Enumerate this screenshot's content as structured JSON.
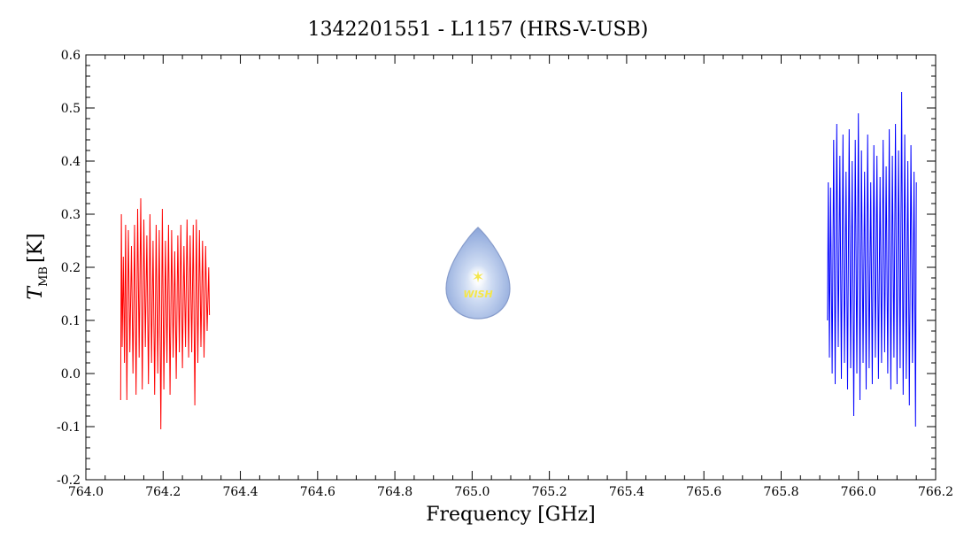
{
  "chart_data": {
    "type": "line",
    "title": "1342201551 - L1157 (HRS-V-USB)",
    "xlabel": "Frequency [GHz]",
    "ylabel_main": "T",
    "ylabel_sub": "MB",
    "ylabel_unit": "[K]",
    "xlim": [
      764.0,
      766.2
    ],
    "ylim": [
      -0.2,
      0.6
    ],
    "x_ticks": [
      "764.0",
      "764.2",
      "764.4",
      "764.6",
      "764.8",
      "765.0",
      "765.2",
      "765.4",
      "765.6",
      "765.8",
      "766.0",
      "766.2"
    ],
    "y_ticks": [
      "-0.2",
      "-0.1",
      "0.0",
      "0.1",
      "0.2",
      "0.3",
      "0.4",
      "0.5",
      "0.6"
    ],
    "grid": false,
    "series": [
      {
        "color": "#ff0000",
        "x_range": [
          764.09,
          764.32
        ],
        "mean": 0.13,
        "min": -0.105,
        "max": 0.33,
        "points": [
          [
            764.09,
            -0.05
          ],
          [
            764.092,
            0.3
          ],
          [
            764.094,
            0.05
          ],
          [
            764.097,
            0.22
          ],
          [
            764.1,
            0.02
          ],
          [
            764.103,
            0.28
          ],
          [
            764.106,
            -0.05
          ],
          [
            764.11,
            0.27
          ],
          [
            764.114,
            0.04
          ],
          [
            764.118,
            0.24
          ],
          [
            764.122,
            0.0
          ],
          [
            764.126,
            0.28
          ],
          [
            764.13,
            -0.04
          ],
          [
            764.134,
            0.31
          ],
          [
            764.138,
            0.03
          ],
          [
            764.142,
            0.33
          ],
          [
            764.146,
            -0.03
          ],
          [
            764.15,
            0.29
          ],
          [
            764.154,
            0.05
          ],
          [
            764.158,
            0.26
          ],
          [
            764.162,
            -0.02
          ],
          [
            764.166,
            0.3
          ],
          [
            764.17,
            0.02
          ],
          [
            764.174,
            0.25
          ],
          [
            764.178,
            -0.04
          ],
          [
            764.182,
            0.28
          ],
          [
            764.186,
            0.0
          ],
          [
            764.19,
            0.27
          ],
          [
            764.194,
            -0.105
          ],
          [
            764.198,
            0.31
          ],
          [
            764.202,
            -0.03
          ],
          [
            764.206,
            0.25
          ],
          [
            764.21,
            0.02
          ],
          [
            764.214,
            0.28
          ],
          [
            764.218,
            -0.04
          ],
          [
            764.222,
            0.27
          ],
          [
            764.226,
            0.03
          ],
          [
            764.23,
            0.23
          ],
          [
            764.234,
            -0.01
          ],
          [
            764.238,
            0.26
          ],
          [
            764.242,
            0.04
          ],
          [
            764.246,
            0.28
          ],
          [
            764.25,
            0.01
          ],
          [
            764.254,
            0.24
          ],
          [
            764.258,
            0.05
          ],
          [
            764.262,
            0.29
          ],
          [
            764.266,
            0.03
          ],
          [
            764.27,
            0.26
          ],
          [
            764.274,
            0.04
          ],
          [
            764.278,
            0.28
          ],
          [
            764.282,
            -0.06
          ],
          [
            764.286,
            0.29
          ],
          [
            764.29,
            0.02
          ],
          [
            764.294,
            0.27
          ],
          [
            764.298,
            0.05
          ],
          [
            764.302,
            0.25
          ],
          [
            764.306,
            0.03
          ],
          [
            764.31,
            0.24
          ],
          [
            764.314,
            0.08
          ],
          [
            764.318,
            0.2
          ],
          [
            764.32,
            0.11
          ]
        ]
      },
      {
        "color": "#0000ff",
        "x_range": [
          765.92,
          766.15
        ],
        "mean": 0.2,
        "min": -0.1,
        "max": 0.53,
        "points": [
          [
            765.92,
            0.1
          ],
          [
            765.922,
            0.36
          ],
          [
            765.925,
            0.03
          ],
          [
            765.928,
            0.35
          ],
          [
            765.932,
            0.0
          ],
          [
            765.936,
            0.44
          ],
          [
            765.94,
            -0.02
          ],
          [
            765.944,
            0.47
          ],
          [
            765.948,
            0.05
          ],
          [
            765.952,
            0.41
          ],
          [
            765.956,
            -0.01
          ],
          [
            765.96,
            0.45
          ],
          [
            765.964,
            0.02
          ],
          [
            765.968,
            0.38
          ],
          [
            765.972,
            -0.03
          ],
          [
            765.976,
            0.46
          ],
          [
            765.98,
            0.01
          ],
          [
            765.984,
            0.4
          ],
          [
            765.988,
            -0.08
          ],
          [
            765.992,
            0.44
          ],
          [
            765.996,
            0.0
          ],
          [
            766.0,
            0.49
          ],
          [
            766.004,
            -0.05
          ],
          [
            766.008,
            0.42
          ],
          [
            766.012,
            0.02
          ],
          [
            766.016,
            0.38
          ],
          [
            766.02,
            -0.03
          ],
          [
            766.024,
            0.45
          ],
          [
            766.028,
            0.01
          ],
          [
            766.032,
            0.36
          ],
          [
            766.036,
            -0.02
          ],
          [
            766.04,
            0.43
          ],
          [
            766.044,
            0.03
          ],
          [
            766.048,
            0.41
          ],
          [
            766.052,
            -0.01
          ],
          [
            766.056,
            0.37
          ],
          [
            766.06,
            0.02
          ],
          [
            766.064,
            0.44
          ],
          [
            766.068,
            0.04
          ],
          [
            766.072,
            0.39
          ],
          [
            766.076,
            0.0
          ],
          [
            766.08,
            0.46
          ],
          [
            766.084,
            -0.03
          ],
          [
            766.088,
            0.41
          ],
          [
            766.092,
            0.03
          ],
          [
            766.096,
            0.47
          ],
          [
            766.1,
            -0.02
          ],
          [
            766.104,
            0.42
          ],
          [
            766.108,
            0.01
          ],
          [
            766.112,
            0.53
          ],
          [
            766.116,
            -0.04
          ],
          [
            766.12,
            0.45
          ],
          [
            766.124,
            -0.01
          ],
          [
            766.128,
            0.4
          ],
          [
            766.132,
            -0.06
          ],
          [
            766.136,
            0.43
          ],
          [
            766.14,
            0.02
          ],
          [
            766.144,
            0.38
          ],
          [
            766.148,
            -0.1
          ],
          [
            766.15,
            0.36
          ]
        ]
      }
    ]
  },
  "watermark": {
    "text": "WISH",
    "icon": "water-drop-star-icon"
  }
}
